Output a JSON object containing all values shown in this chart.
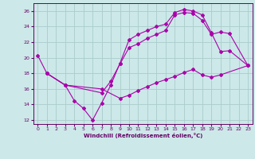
{
  "xlabel": "Windchill (Refroidissement éolien,°C)",
  "bg_color": "#cce8e8",
  "grid_color": "#aacccc",
  "line_color": "#aa00aa",
  "xlim": [
    -0.5,
    23.5
  ],
  "ylim": [
    11.5,
    27.0
  ],
  "xticks": [
    0,
    1,
    2,
    3,
    4,
    5,
    6,
    7,
    8,
    9,
    10,
    11,
    12,
    13,
    14,
    15,
    16,
    17,
    18,
    19,
    20,
    21,
    22,
    23
  ],
  "yticks": [
    12,
    14,
    16,
    18,
    20,
    22,
    24,
    26
  ],
  "line1_x": [
    0,
    1,
    3,
    4,
    5,
    6,
    7,
    8,
    9,
    10,
    11,
    12,
    13,
    14,
    15,
    16,
    17,
    18,
    19,
    20,
    21,
    23
  ],
  "line1_y": [
    20.3,
    18.0,
    16.5,
    14.5,
    13.5,
    12.0,
    14.2,
    16.5,
    19.3,
    22.3,
    23.0,
    23.5,
    24.0,
    24.3,
    25.8,
    26.2,
    26.0,
    25.5,
    23.2,
    20.8,
    20.9,
    19.0
  ],
  "line2_x": [
    1,
    3,
    7,
    8,
    9,
    10,
    11,
    12,
    13,
    14,
    15,
    16,
    17,
    18,
    19,
    20,
    21,
    23
  ],
  "line2_y": [
    18.0,
    16.5,
    15.5,
    17.0,
    19.2,
    21.3,
    21.8,
    22.5,
    23.0,
    23.5,
    25.5,
    25.8,
    25.7,
    24.8,
    23.0,
    23.3,
    23.1,
    19.0
  ],
  "line3_x": [
    1,
    3,
    7,
    9,
    10,
    11,
    12,
    13,
    14,
    15,
    16,
    17,
    18,
    19,
    20,
    23
  ],
  "line3_y": [
    18.0,
    16.5,
    16.0,
    14.8,
    15.2,
    15.8,
    16.3,
    16.8,
    17.2,
    17.6,
    18.1,
    18.5,
    17.8,
    17.5,
    17.8,
    19.0
  ]
}
